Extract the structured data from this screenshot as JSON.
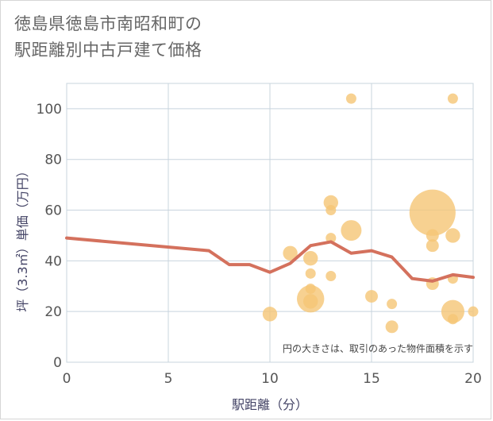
{
  "chart_data": {
    "type": "scatter",
    "title_lines": [
      "徳島県徳島市南昭和町の",
      "駅距離別中古戸建て価格"
    ],
    "xlabel": "駅距離（分）",
    "ylabel": "坪（3.3㎡）単価（万円）",
    "xlim": [
      0,
      20
    ],
    "ylim": [
      0,
      110
    ],
    "x_ticks": [
      0,
      5,
      10,
      15,
      20
    ],
    "y_ticks": [
      0,
      20,
      40,
      60,
      80,
      100
    ],
    "note": "円の大きさは、取引のあった物件面積を示す",
    "bubbles": [
      {
        "x": 10,
        "y": 19,
        "size": 2
      },
      {
        "x": 11,
        "y": 43,
        "size": 2
      },
      {
        "x": 12,
        "y": 41,
        "size": 2
      },
      {
        "x": 12,
        "y": 35,
        "size": 1
      },
      {
        "x": 12,
        "y": 29,
        "size": 1
      },
      {
        "x": 12,
        "y": 25,
        "size": 7
      },
      {
        "x": 12,
        "y": 24,
        "size": 2
      },
      {
        "x": 13,
        "y": 63,
        "size": 2
      },
      {
        "x": 13,
        "y": 60,
        "size": 1
      },
      {
        "x": 13,
        "y": 49,
        "size": 1
      },
      {
        "x": 13,
        "y": 34,
        "size": 1
      },
      {
        "x": 14,
        "y": 104,
        "size": 1
      },
      {
        "x": 14,
        "y": 52,
        "size": 4
      },
      {
        "x": 15,
        "y": 26,
        "size": 1.5
      },
      {
        "x": 16,
        "y": 23,
        "size": 1
      },
      {
        "x": 16,
        "y": 14,
        "size": 1.5
      },
      {
        "x": 18,
        "y": 59,
        "size": 20
      },
      {
        "x": 18,
        "y": 50,
        "size": 1.5
      },
      {
        "x": 18,
        "y": 46,
        "size": 1.5
      },
      {
        "x": 18,
        "y": 31,
        "size": 1.5
      },
      {
        "x": 19,
        "y": 104,
        "size": 1
      },
      {
        "x": 19,
        "y": 50,
        "size": 2
      },
      {
        "x": 19,
        "y": 33,
        "size": 1
      },
      {
        "x": 19,
        "y": 20,
        "size": 5
      },
      {
        "x": 19,
        "y": 17,
        "size": 1
      },
      {
        "x": 20,
        "y": 20,
        "size": 1
      }
    ],
    "trend_line": {
      "x": [
        0,
        7,
        8,
        9,
        10,
        11,
        12,
        13,
        14,
        15,
        16,
        17,
        18,
        19,
        20
      ],
      "y": [
        49,
        44,
        38.5,
        38.5,
        35.5,
        39,
        46,
        47.5,
        43,
        44,
        41.5,
        33,
        32,
        34.5,
        33.5
      ]
    },
    "colors": {
      "bubble": "#f5c675",
      "line": "#d4715d",
      "grid": "#c8d4de"
    }
  }
}
